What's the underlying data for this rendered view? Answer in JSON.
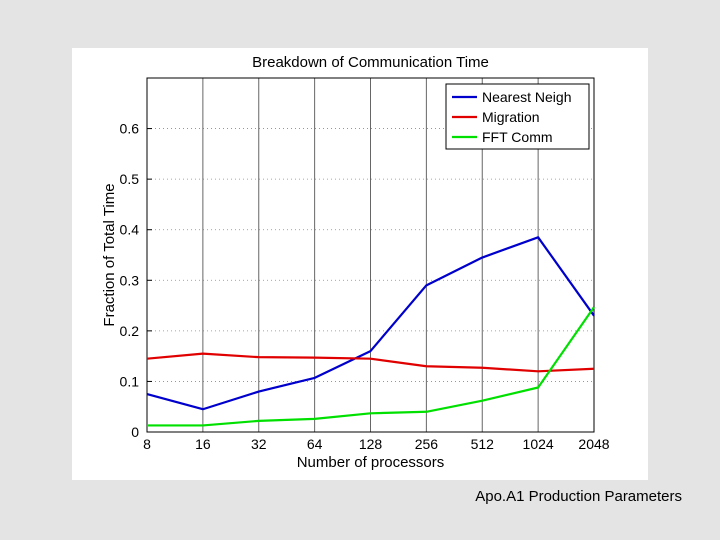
{
  "caption": "Apo.A1 Production Parameters",
  "chart_data": {
    "type": "line",
    "title": "Breakdown of Communication Time",
    "xlabel": "Number of processors",
    "ylabel": "Fraction of Total Time",
    "x": [
      "8",
      "16",
      "32",
      "64",
      "128",
      "256",
      "512",
      "1024",
      "2048"
    ],
    "ylim": [
      0,
      0.7
    ],
    "yticks": [
      "0",
      "0.1",
      "0.2",
      "0.3",
      "0.4",
      "0.5",
      "0.6"
    ],
    "grid": true,
    "legend_position": "top-right",
    "series": [
      {
        "name": "Nearest Neigh",
        "color": "#0000cc",
        "values": [
          0.075,
          0.045,
          0.08,
          0.107,
          0.16,
          0.29,
          0.345,
          0.385,
          0.23
        ]
      },
      {
        "name": "Migration",
        "color": "#e00000",
        "values": [
          0.145,
          0.155,
          0.148,
          0.147,
          0.145,
          0.13,
          0.127,
          0.12,
          0.125
        ]
      },
      {
        "name": "FFT Comm",
        "color": "#00e000",
        "values": [
          0.013,
          0.013,
          0.022,
          0.026,
          0.037,
          0.04,
          0.062,
          0.088,
          0.247
        ]
      }
    ]
  }
}
